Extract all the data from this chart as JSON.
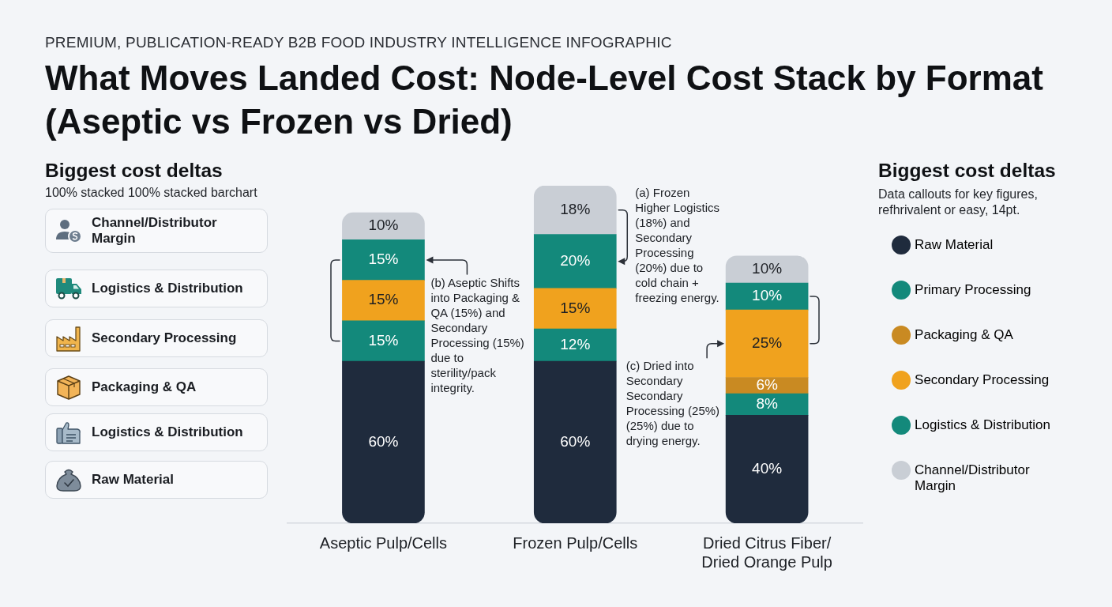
{
  "chart_data": {
    "type": "bar",
    "subtitle": "PREMIUM, PUBLICATION-READY B2B FOOD INDUSTRY INTELLIGENCE INFOGRAPHIC",
    "title": "What Moves Landed Cost: Node-Level Cost Stack by Format (Aseptic vs Frozen vs Dried)",
    "categories": [
      "Aseptic Pulp/Cells",
      "Frozen Pulp/Cells",
      "Dried Citrus Fiber/ Dried Orange Pulp"
    ],
    "stacked": true,
    "tick_labels": "x",
    "legend": "right",
    "series": [
      {
        "name": "Raw Material",
        "color": "#1f2b3d",
        "values": [
          60,
          60,
          40
        ],
        "value_labels": [
          "60%",
          "60%",
          "40%"
        ]
      },
      {
        "name": "Primary Processing",
        "color": "#13897b",
        "values": [
          15,
          12,
          8
        ],
        "value_labels": [
          "15%",
          "12%",
          "8%"
        ]
      },
      {
        "name": "Packaging & QA",
        "color": "#c98a22",
        "values": [
          null,
          null,
          6
        ],
        "value_labels": [
          null,
          null,
          "6%"
        ]
      },
      {
        "name": "Secondary Processing",
        "color": "#f0a21e",
        "values": [
          15,
          15,
          25
        ],
        "value_labels": [
          "15%",
          "15%",
          "25%"
        ]
      },
      {
        "name": "Logistics & Distribution",
        "color": "#13897b",
        "values": [
          15,
          20,
          10
        ],
        "value_labels": [
          "15%",
          "20%",
          "10%"
        ]
      },
      {
        "name": "Channel/Distributor Margin",
        "color": "#c9ced5",
        "values": [
          10,
          18,
          10
        ],
        "value_labels": [
          "10%",
          "18%",
          "10%"
        ]
      }
    ],
    "annotations": [
      "Biggest cost deltas",
      "100% stacked 100% stacked barchart",
      "Channel/Distributor Margin",
      "Logistics & Distribution",
      "Secondary Processing",
      "Packaging & QA",
      "Logistics & Distribution",
      "Raw Material",
      "Biggest cost deltas",
      "Data callouts for key figures, refhrivalent or easy, 14pt.",
      "(a) Frozen Higher Logistics (18%) and Secondary Processing (20%) due to cold chain + freezing energy.",
      "(b) Aseptic Shifts into Packaging & QA (15%) and Secondary Processing (15%) due to sterility/pack integrity.",
      "(c) Dried into Secondary Secondary Processing (25%) (25%) due to drying energy."
    ]
  }
}
